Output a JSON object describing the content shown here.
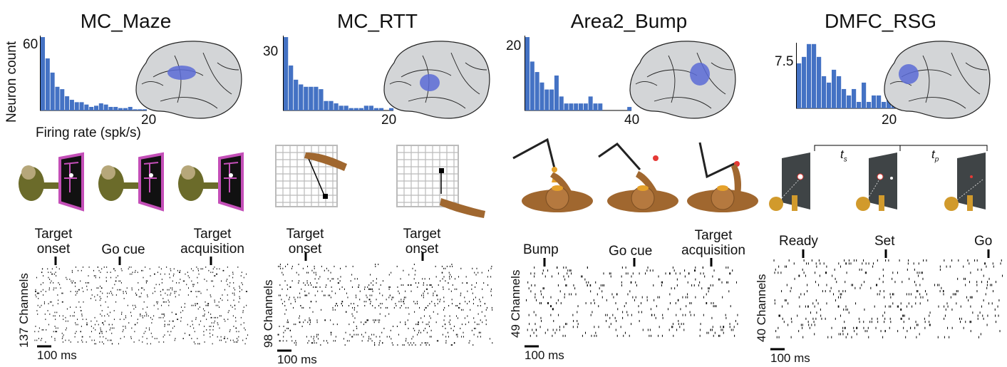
{
  "panels": [
    {
      "title": "MC_Maze",
      "hist": {
        "ytick": "60",
        "xtick": "20",
        "ylabel": "Neuron count",
        "xlabel": "Firing rate (spk/s)",
        "values": [
          62,
          44,
          32,
          20,
          18,
          12,
          9,
          7,
          7,
          5,
          3,
          4,
          6,
          5,
          3,
          3,
          2,
          2,
          3,
          1,
          1,
          1
        ]
      },
      "events": [
        "Target onset",
        "Go cue",
        "Target acquisition"
      ],
      "channels": "137 Channels",
      "scale": "100 ms"
    },
    {
      "title": "MC_RTT",
      "hist": {
        "ytick": "30",
        "xtick": "20",
        "values": [
          31,
          19,
          13,
          11,
          10,
          10,
          10,
          9,
          4,
          4,
          3,
          2,
          2,
          1,
          1,
          1,
          2,
          2,
          1,
          1,
          0,
          1
        ]
      },
      "events": [
        "Target onset",
        "Target onset"
      ],
      "channels": "98 Channels",
      "scale": "100 ms"
    },
    {
      "title": "Area2_Bump",
      "hist": {
        "ytick": "20",
        "xtick": "40",
        "values": [
          21,
          14,
          11,
          8,
          6,
          6,
          10,
          4,
          2,
          2,
          2,
          2,
          2,
          4,
          2,
          2,
          0,
          0,
          0,
          0,
          0,
          1
        ]
      },
      "events": [
        "Bump",
        "Go cue",
        "Target acquisition"
      ],
      "channels": "49 Channels",
      "scale": "100 ms"
    },
    {
      "title": "DMFC_RSG",
      "hist": {
        "ytick": "7.5",
        "xtick": "20",
        "values": [
          7,
          8,
          10,
          10,
          8,
          5,
          4,
          6,
          5,
          3,
          2,
          3,
          1,
          4,
          1,
          2,
          2,
          1,
          4,
          1
        ]
      },
      "events": [
        "Ready",
        "Set",
        "Go"
      ],
      "channels": "40 Channels",
      "scale": "100 ms",
      "interval_labels": [
        "t",
        "s",
        "t",
        "p"
      ]
    }
  ],
  "colors": {
    "bar": "#4472c4",
    "brain_fill": "#d3d5d7",
    "brain_region": "#5a6bd6",
    "monkey": "#6b6b2a",
    "arm": "#a0672f",
    "screen_border": "#c44fb8",
    "target": "#e53935"
  }
}
